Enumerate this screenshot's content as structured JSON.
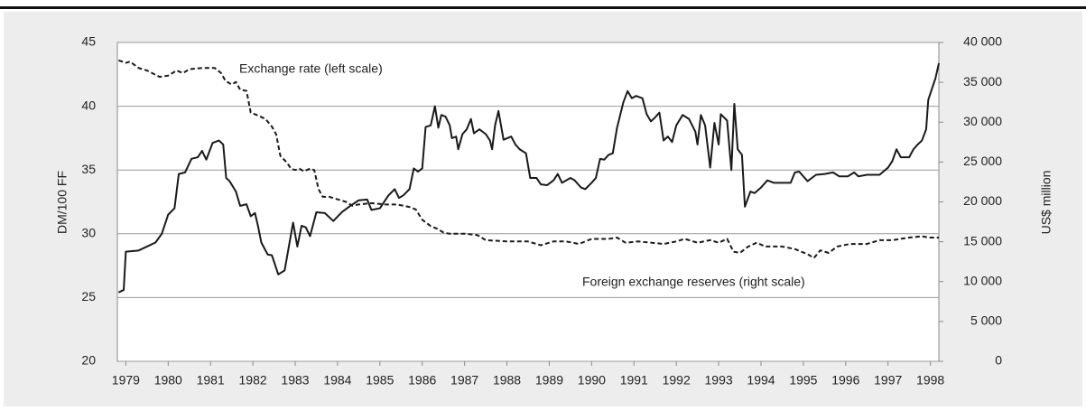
{
  "chart_data": {
    "type": "line",
    "y_label": "DM/100 FF",
    "y2_label": "US$ million",
    "annotations": [
      "Exchange rate (left scale)",
      "Foreign exchange reserves (right scale)"
    ],
    "xlim": [
      1979.3,
      1998.7
    ],
    "xticks": [
      {
        "value": 1979.5,
        "label": "1979"
      },
      {
        "value": 1980.5,
        "label": "1980"
      },
      {
        "value": 1981.5,
        "label": "1981"
      },
      {
        "value": 1982.5,
        "label": "1982"
      },
      {
        "value": 1983.5,
        "label": "1983"
      },
      {
        "value": 1984.5,
        "label": "1984"
      },
      {
        "value": 1985.5,
        "label": "1985"
      },
      {
        "value": 1986.5,
        "label": "1986"
      },
      {
        "value": 1987.5,
        "label": "1987"
      },
      {
        "value": 1988.5,
        "label": "1988"
      },
      {
        "value": 1989.5,
        "label": "1989"
      },
      {
        "value": 1990.5,
        "label": "1990"
      },
      {
        "value": 1991.5,
        "label": "1991"
      },
      {
        "value": 1992.5,
        "label": "1992"
      },
      {
        "value": 1993.5,
        "label": "1993"
      },
      {
        "value": 1994.5,
        "label": "1994"
      },
      {
        "value": 1995.5,
        "label": "1995"
      },
      {
        "value": 1996.5,
        "label": "1996"
      },
      {
        "value": 1997.5,
        "label": "1997"
      },
      {
        "value": 1998.5,
        "label": "1998"
      }
    ],
    "ylim": [
      20,
      45
    ],
    "yticks": [
      20,
      25,
      30,
      35,
      40,
      45
    ],
    "y2lim": [
      0,
      40000
    ],
    "y2ticks": [
      0,
      {
        "value": 5000,
        "label": "5 000"
      },
      {
        "value": 10000,
        "label": "10 000"
      },
      {
        "value": 15000,
        "label": "15 000"
      },
      {
        "value": 20000,
        "label": "20 000"
      },
      {
        "value": 25000,
        "label": "25 000"
      },
      {
        "value": 30000,
        "label": "30 000"
      },
      {
        "value": 35000,
        "label": "35 000"
      },
      {
        "value": 40000,
        "label": "40 000"
      }
    ],
    "grid": true,
    "series": [
      {
        "name": "Exchange rate",
        "color": "#1a1a1a",
        "style": "dashed",
        "axis": "y",
        "x": [
          1979.33,
          1979.5,
          1979.6,
          1979.8,
          1980.0,
          1980.3,
          1980.5,
          1980.7,
          1980.85,
          1981.0,
          1981.3,
          1981.6,
          1981.75,
          1981.85,
          1982.0,
          1982.1,
          1982.2,
          1982.35,
          1982.45,
          1982.6,
          1982.8,
          1982.95,
          1983.05,
          1983.15,
          1983.3,
          1983.4,
          1983.5,
          1983.6,
          1983.7,
          1983.85,
          1983.95,
          1984.05,
          1984.15,
          1984.3,
          1984.5,
          1984.7,
          1984.85,
          1985.0,
          1985.3,
          1985.6,
          1985.9,
          1986.2,
          1986.35,
          1986.5,
          1986.7,
          1986.85,
          1987.0,
          1987.15,
          1987.5,
          1987.8,
          1988.0,
          1988.5,
          1989.0,
          1989.3,
          1989.6,
          1989.9,
          1990.2,
          1990.5,
          1990.9,
          1991.1,
          1991.3,
          1991.6,
          1991.9,
          1992.2,
          1992.5,
          1992.7,
          1993.0,
          1993.3,
          1993.5,
          1993.7,
          1993.85,
          1994.0,
          1994.2,
          1994.4,
          1994.6,
          1995.0,
          1995.3,
          1995.6,
          1995.75,
          1995.9,
          1996.1,
          1996.3,
          1996.6,
          1997.0,
          1997.3,
          1997.6,
          1998.0,
          1998.3,
          1998.5,
          1998.7
        ],
        "values": [
          43.6,
          43.4,
          43.5,
          43.0,
          42.8,
          42.3,
          42.4,
          42.8,
          42.6,
          42.9,
          43.0,
          43.0,
          42.6,
          42.0,
          41.7,
          41.9,
          41.3,
          41.2,
          39.5,
          39.3,
          39.0,
          38.4,
          37.8,
          36.1,
          35.6,
          35.1,
          35.0,
          35.1,
          34.9,
          35.1,
          35.0,
          33.5,
          32.9,
          32.9,
          32.7,
          32.5,
          32.2,
          32.3,
          32.4,
          32.3,
          32.3,
          32.1,
          31.9,
          31.1,
          30.6,
          30.4,
          30.1,
          30.0,
          30.0,
          29.9,
          29.5,
          29.4,
          29.4,
          29.1,
          29.4,
          29.4,
          29.2,
          29.6,
          29.6,
          29.7,
          29.3,
          29.4,
          29.3,
          29.2,
          29.4,
          29.6,
          29.3,
          29.5,
          29.3,
          29.6,
          28.6,
          28.5,
          29.0,
          29.3,
          29.0,
          29.0,
          28.8,
          28.4,
          28.1,
          28.7,
          28.5,
          29.0,
          29.2,
          29.2,
          29.5,
          29.5,
          29.7,
          29.8,
          29.7,
          29.7
        ]
      },
      {
        "name": "Foreign exchange reserves",
        "color": "#1a1a1a",
        "style": "solid",
        "axis": "y2",
        "x": [
          1979.33,
          1979.45,
          1979.5,
          1979.8,
          1980.0,
          1980.2,
          1980.35,
          1980.5,
          1980.65,
          1980.75,
          1980.9,
          1981.05,
          1981.2,
          1981.3,
          1981.4,
          1981.55,
          1981.7,
          1981.8,
          1981.87,
          1981.95,
          1982.1,
          1982.2,
          1982.35,
          1982.45,
          1982.55,
          1982.62,
          1982.7,
          1982.85,
          1982.95,
          1983.1,
          1983.25,
          1983.45,
          1983.55,
          1983.65,
          1983.75,
          1983.85,
          1984.0,
          1984.2,
          1984.4,
          1984.6,
          1984.8,
          1985.0,
          1985.2,
          1985.3,
          1985.5,
          1985.7,
          1985.85,
          1985.95,
          1986.05,
          1986.2,
          1986.3,
          1986.4,
          1986.5,
          1986.58,
          1986.7,
          1986.8,
          1986.88,
          1986.95,
          1987.05,
          1987.15,
          1987.2,
          1987.3,
          1987.35,
          1987.45,
          1987.55,
          1987.65,
          1987.72,
          1987.85,
          1988.0,
          1988.1,
          1988.15,
          1988.22,
          1988.3,
          1988.42,
          1988.6,
          1988.7,
          1988.8,
          1988.95,
          1989.05,
          1989.2,
          1989.3,
          1989.45,
          1989.6,
          1989.7,
          1989.8,
          1990.0,
          1990.1,
          1990.25,
          1990.35,
          1990.5,
          1990.6,
          1990.7,
          1990.8,
          1990.9,
          1991.0,
          1991.1,
          1991.25,
          1991.35,
          1991.45,
          1991.55,
          1991.7,
          1991.8,
          1991.9,
          1992.0,
          1992.1,
          1992.2,
          1992.3,
          1992.4,
          1992.5,
          1992.65,
          1992.8,
          1992.95,
          1993.0,
          1993.08,
          1993.18,
          1993.3,
          1993.4,
          1993.5,
          1993.55,
          1993.7,
          1993.8,
          1993.87,
          1993.95,
          1994.05,
          1994.12,
          1994.25,
          1994.35,
          1994.5,
          1994.65,
          1994.8,
          1995.0,
          1995.2,
          1995.3,
          1995.4,
          1995.5,
          1995.6,
          1995.8,
          1996.0,
          1996.2,
          1996.35,
          1996.55,
          1996.7,
          1996.8,
          1997.0,
          1997.3,
          1997.5,
          1997.6,
          1997.7,
          1997.8,
          1998.0,
          1998.1,
          1998.2,
          1998.3,
          1998.4,
          1998.45,
          1998.55,
          1998.62,
          1998.7
        ],
        "values": [
          8640,
          8960,
          13760,
          13900,
          14400,
          14900,
          16000,
          18400,
          19200,
          23500,
          23700,
          25400,
          25600,
          26400,
          25300,
          27400,
          27700,
          27200,
          23000,
          22600,
          21300,
          19500,
          19700,
          18200,
          18600,
          17000,
          14900,
          13400,
          13300,
          10900,
          11400,
          17400,
          14400,
          17000,
          16800,
          15700,
          18700,
          18600,
          17600,
          18700,
          19500,
          20200,
          20300,
          19000,
          19200,
          20800,
          21600,
          20500,
          20800,
          21600,
          24200,
          23800,
          24200,
          29400,
          29600,
          32000,
          29300,
          30900,
          30700,
          29600,
          28000,
          28200,
          26600,
          28500,
          29100,
          30400,
          28600,
          29100,
          28500,
          27700,
          26600,
          29600,
          31400,
          27800,
          28200,
          27200,
          26600,
          26100,
          23000,
          23000,
          22200,
          22100,
          22700,
          23500,
          22400,
          23000,
          22700,
          21800,
          21600,
          22400,
          23000,
          25400,
          25300,
          25900,
          26100,
          29300,
          32500,
          33900,
          33000,
          33300,
          33000,
          31000,
          30100,
          30600,
          31200,
          27700,
          28200,
          27500,
          29600,
          30900,
          30400,
          28800,
          27200,
          30900,
          29600,
          24300,
          29900,
          27200,
          31000,
          30200,
          24000,
          32300,
          26600,
          25900,
          19400,
          21300,
          21100,
          21800,
          22700,
          22400,
          22400,
          22400,
          23700,
          23800,
          23200,
          22600,
          23400,
          23500,
          23700,
          23200,
          23200,
          23700,
          23200,
          23400,
          23400,
          24300,
          25100,
          26600,
          25600,
          25600,
          26600,
          27200,
          27700,
          29100,
          32800,
          34400,
          35500,
          37400
        ]
      }
    ]
  }
}
